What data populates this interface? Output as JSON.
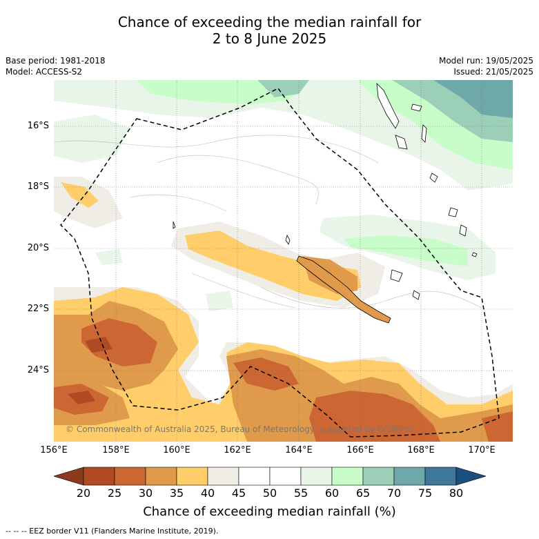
{
  "title": {
    "line1": "Chance of exceeding the median rainfall for",
    "line2": "2 to 8 June 2025"
  },
  "meta": {
    "base_period": "Base period: 1981-2018",
    "model": "Model: ACCESS-S2",
    "model_run": "Model run: 19/05/2025",
    "issued": "Issued: 21/05/2025"
  },
  "map": {
    "copyright": "© Commonwealth of Australia 2025, Bureau of Meteorology, supported by COSPPac",
    "lat_labels": [
      "16°S",
      "18°S",
      "20°S",
      "22°S",
      "24°S"
    ],
    "lon_labels": [
      "156°E",
      "158°E",
      "160°E",
      "162°E",
      "164°E",
      "166°E",
      "168°E",
      "170°E"
    ]
  },
  "colorbar": {
    "ticks": [
      "20",
      "25",
      "30",
      "35",
      "40",
      "45",
      "50",
      "55",
      "60",
      "65",
      "70",
      "75",
      "80"
    ],
    "colors": [
      "#8c3a1c",
      "#b04a24",
      "#cc6633",
      "#e09a4c",
      "#ffcd6a",
      "#f0ede6",
      "#ffffff",
      "#ffffff",
      "#e8f5e8",
      "#c8fcc8",
      "#9ccfb8",
      "#6fa8a8",
      "#3f7699",
      "#1a4f80"
    ],
    "label": "Chance of exceeding median rainfall (%)"
  },
  "legend": {
    "eez": "-- -- -- EEZ border V11 (Flanders Marine Institute, 2019)."
  }
}
